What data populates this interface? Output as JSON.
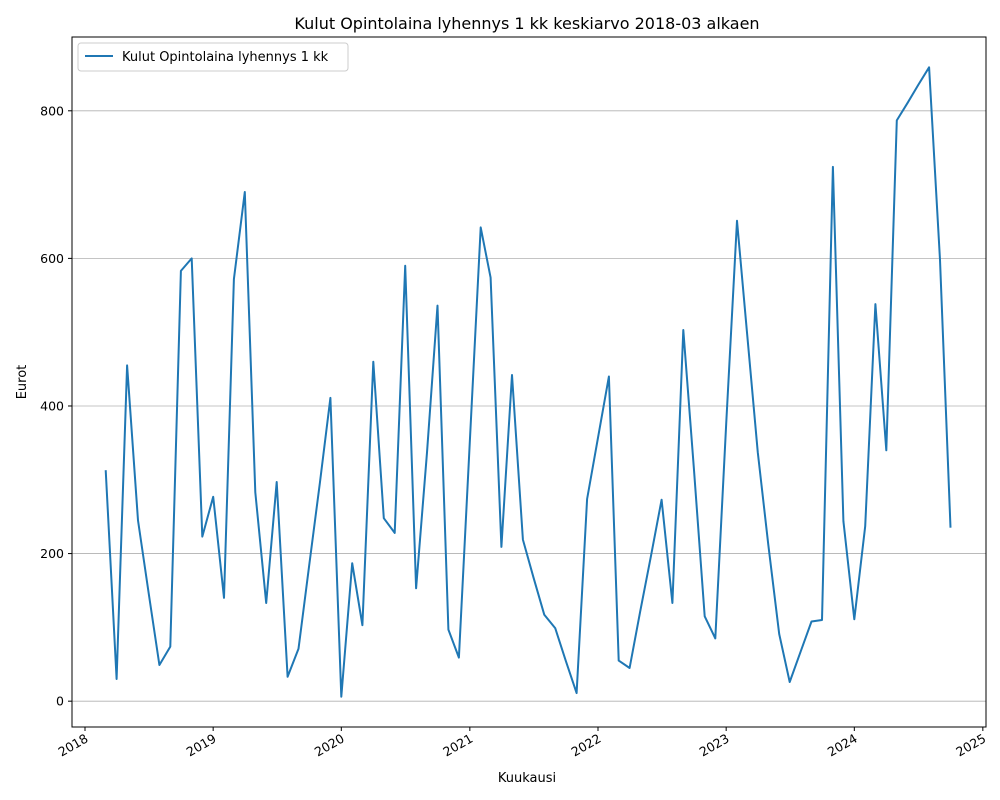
{
  "chart_data": {
    "type": "line",
    "title": "Kulut Opintolaina lyhennys 1 kk keskiarvo 2018-03 alkaen",
    "xlabel": "Kuukausi",
    "ylabel": "Eurot",
    "xlim": [
      "2017-11-25",
      "2025-01-10"
    ],
    "ylim": [
      -35,
      900
    ],
    "x_ticks": [
      "2018",
      "2019",
      "2020",
      "2021",
      "2022",
      "2023",
      "2024",
      "2025"
    ],
    "y_ticks": [
      0,
      200,
      400,
      600,
      800
    ],
    "grid": "horizontal",
    "legend_position": "top-left",
    "line_color": "#1f77b4",
    "series": [
      {
        "name": "Kulut Opintolaina lyhennys 1 kk",
        "x": [
          "2018-03",
          "2018-04",
          "2018-05",
          "2018-06",
          "2018-07",
          "2018-08",
          "2018-09",
          "2018-10",
          "2018-11",
          "2018-12",
          "2019-01",
          "2019-02",
          "2019-03",
          "2019-04",
          "2019-05",
          "2019-06",
          "2019-07",
          "2019-08",
          "2019-09",
          "2019-10",
          "2019-11",
          "2019-12",
          "2020-01",
          "2020-02",
          "2020-03",
          "2020-04",
          "2020-05",
          "2020-06",
          "2020-07",
          "2020-08",
          "2020-09",
          "2020-10",
          "2020-11",
          "2020-12",
          "2021-01",
          "2021-02",
          "2021-03",
          "2021-04",
          "2021-05",
          "2021-06",
          "2021-07",
          "2021-08",
          "2021-09",
          "2021-10",
          "2021-11",
          "2021-12",
          "2022-01",
          "2022-02",
          "2022-03",
          "2022-04",
          "2022-05",
          "2022-06",
          "2022-07",
          "2022-08",
          "2022-09",
          "2022-10",
          "2022-11",
          "2022-12",
          "2023-01",
          "2023-02",
          "2023-03",
          "2023-04",
          "2023-05",
          "2023-06",
          "2023-07",
          "2023-08",
          "2023-09",
          "2023-10",
          "2023-11",
          "2023-12",
          "2024-01",
          "2024-02",
          "2024-03",
          "2024-04",
          "2024-05",
          "2024-06",
          "2024-07",
          "2024-08",
          "2024-09",
          "2024-10"
        ],
        "y": [
          313,
          30,
          455,
          245,
          148,
          49,
          74,
          583,
          600,
          223,
          277,
          140,
          572,
          690,
          283,
          133,
          297,
          33,
          71,
          182,
          296,
          411,
          6,
          187,
          103,
          460,
          248,
          228,
          590,
          153,
          337,
          536,
          97,
          59,
          351,
          642,
          574,
          209,
          442,
          219,
          168,
          117,
          99,
          55,
          11,
          274,
          357,
          440,
          55,
          45,
          121,
          197,
          273,
          133,
          503,
          315,
          115,
          85,
          376,
          651,
          501,
          337,
          212,
          91,
          26,
          67,
          108,
          110,
          724,
          244,
          111,
          237,
          538,
          340,
          787,
          811,
          835,
          859,
          598,
          235
        ]
      }
    ]
  }
}
